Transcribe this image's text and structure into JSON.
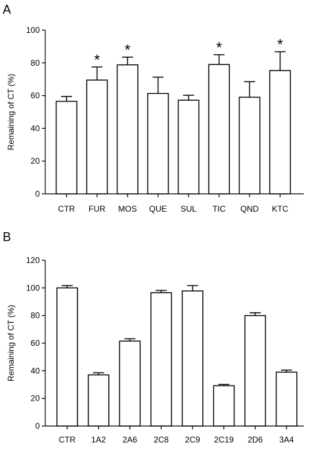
{
  "chart_data": [
    {
      "panel": "A",
      "type": "bar",
      "ylabel": "Remaining of CT (%)",
      "xlabel": "",
      "ylim": [
        0,
        100
      ],
      "yticks": [
        0,
        20,
        40,
        60,
        80,
        100
      ],
      "categories": [
        "CTR",
        "FUR",
        "MOS",
        "QUE",
        "SUL",
        "TIC",
        "QND",
        "KTC"
      ],
      "values": [
        56.5,
        69.5,
        78.8,
        61.3,
        57.2,
        79.0,
        59.0,
        75.3
      ],
      "errors": [
        3.0,
        8.0,
        4.7,
        10.0,
        3.0,
        6.0,
        9.5,
        11.5
      ],
      "significance": [
        "",
        "*",
        "*",
        "",
        "",
        "*",
        "",
        "*"
      ],
      "bar_fill": "#ffffff",
      "bar_stroke": "#000000",
      "grid": false
    },
    {
      "panel": "B",
      "type": "bar",
      "ylabel": "Remaining of CT (%)",
      "xlabel": "",
      "ylim": [
        0,
        120
      ],
      "yticks": [
        0,
        20,
        40,
        60,
        80,
        100,
        120
      ],
      "categories": [
        "CTR",
        "1A2",
        "2A6",
        "2C8",
        "2C9",
        "2C19",
        "2D6",
        "3A4"
      ],
      "values": [
        100.0,
        37.0,
        61.5,
        96.5,
        97.8,
        29.2,
        80.0,
        39.0
      ],
      "errors": [
        1.7,
        1.5,
        1.7,
        1.7,
        3.9,
        0.9,
        2.0,
        1.5
      ],
      "significance": [
        "",
        "",
        "",
        "",
        "",
        "",
        "",
        ""
      ],
      "bar_fill": "#ffffff",
      "bar_stroke": "#000000",
      "grid": false
    }
  ]
}
